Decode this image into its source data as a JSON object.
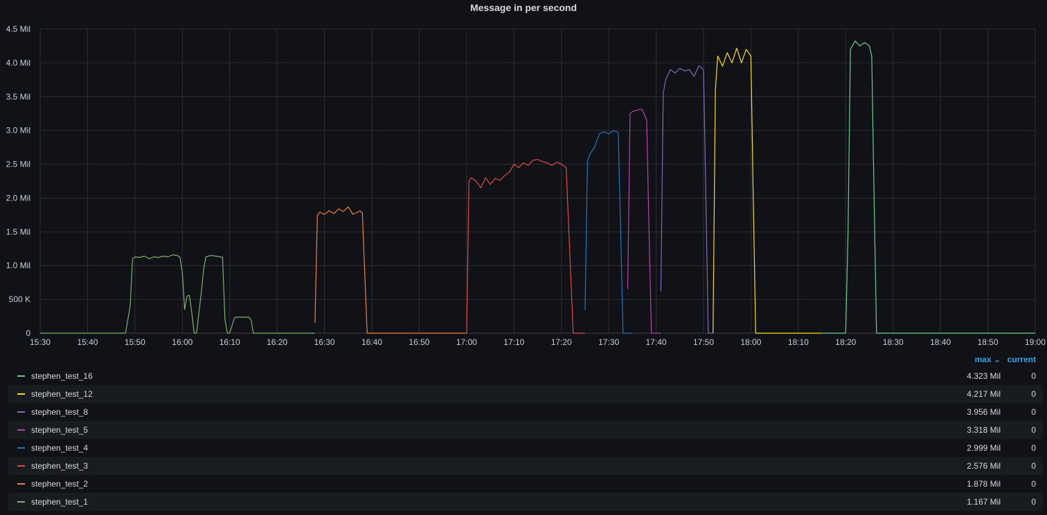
{
  "panel": {
    "title": "Message in per second"
  },
  "legend": {
    "col_max": "max ⌄",
    "col_current": "current",
    "rows": [
      {
        "name": "stephen_test_16",
        "color": "#6ccf8e",
        "max": "4.323 Mil",
        "current": "0"
      },
      {
        "name": "stephen_test_12",
        "color": "#fade2a",
        "max": "4.217 Mil",
        "current": "0"
      },
      {
        "name": "stephen_test_8",
        "color": "#806eb7",
        "max": "3.956 Mil",
        "current": "0"
      },
      {
        "name": "stephen_test_5",
        "color": "#ba43a9",
        "max": "3.318 Mil",
        "current": "0"
      },
      {
        "name": "stephen_test_4",
        "color": "#1f78c1",
        "max": "2.999 Mil",
        "current": "0"
      },
      {
        "name": "stephen_test_3",
        "color": "#e24d42",
        "max": "2.576 Mil",
        "current": "0"
      },
      {
        "name": "stephen_test_2",
        "color": "#ef843c",
        "max": "1.878 Mil",
        "current": "0"
      },
      {
        "name": "stephen_test_1",
        "color": "#7eb26d",
        "max": "1.167 Mil",
        "current": "0"
      }
    ]
  },
  "chart_data": {
    "type": "line",
    "title": "Message in per second",
    "xlabel": "",
    "ylabel": "",
    "grid": true,
    "legend_position": "bottom",
    "x_range": [
      "15:30",
      "19:00"
    ],
    "ylim": [
      0,
      4500000
    ],
    "x_ticks": [
      "15:30",
      "15:40",
      "15:50",
      "16:00",
      "16:10",
      "16:20",
      "16:30",
      "16:40",
      "16:50",
      "17:00",
      "17:10",
      "17:20",
      "17:30",
      "17:40",
      "17:50",
      "18:00",
      "18:10",
      "18:20",
      "18:30",
      "18:40",
      "18:50",
      "19:00"
    ],
    "y_ticks": [
      {
        "v": 0,
        "label": "0"
      },
      {
        "v": 500000,
        "label": "500 K"
      },
      {
        "v": 1000000,
        "label": "1.0 Mil"
      },
      {
        "v": 1500000,
        "label": "1.5 Mil"
      },
      {
        "v": 2000000,
        "label": "2.0 Mil"
      },
      {
        "v": 2500000,
        "label": "2.5 Mil"
      },
      {
        "v": 3000000,
        "label": "3.0 Mil"
      },
      {
        "v": 3500000,
        "label": "3.5 Mil"
      },
      {
        "v": 4000000,
        "label": "4.0 Mil"
      },
      {
        "v": 4500000,
        "label": "4.5 Mil"
      }
    ],
    "series": [
      {
        "name": "stephen_test_1",
        "color": "#7eb26d",
        "points": [
          [
            "15:30",
            0
          ],
          [
            "15:48",
            0
          ],
          [
            "15:49",
            400000
          ],
          [
            "15:49.5",
            1100000
          ],
          [
            "15:50",
            1130000
          ],
          [
            "15:51",
            1120000
          ],
          [
            "15:52",
            1140000
          ],
          [
            "15:53",
            1100000
          ],
          [
            "15:54",
            1130000
          ],
          [
            "15:55",
            1120000
          ],
          [
            "15:56",
            1140000
          ],
          [
            "15:57",
            1130000
          ],
          [
            "15:58",
            1160000
          ],
          [
            "15:59",
            1150000
          ],
          [
            "15:59.5",
            1120000
          ],
          [
            "16:00",
            900000
          ],
          [
            "16:00.5",
            350000
          ],
          [
            "16:01",
            550000
          ],
          [
            "16:01.5",
            560000
          ],
          [
            "16:02",
            300000
          ],
          [
            "16:02.5",
            0
          ],
          [
            "16:03",
            0
          ],
          [
            "16:03.5",
            300000
          ],
          [
            "16:04",
            600000
          ],
          [
            "16:04.5",
            950000
          ],
          [
            "16:05",
            1130000
          ],
          [
            "16:06",
            1150000
          ],
          [
            "16:07",
            1140000
          ],
          [
            "16:08",
            1130000
          ],
          [
            "16:08.5",
            1120000
          ],
          [
            "16:09",
            200000
          ],
          [
            "16:09.5",
            0
          ],
          [
            "16:10",
            0
          ],
          [
            "16:11",
            230000
          ],
          [
            "16:12",
            240000
          ],
          [
            "16:13",
            235000
          ],
          [
            "16:14",
            240000
          ],
          [
            "16:14.5",
            200000
          ],
          [
            "16:15",
            0
          ],
          [
            "16:28",
            0
          ]
        ]
      },
      {
        "name": "stephen_test_2",
        "color": "#ef843c",
        "points": [
          [
            "16:28",
            150000
          ],
          [
            "16:28.5",
            1750000
          ],
          [
            "16:29",
            1790000
          ],
          [
            "16:30",
            1760000
          ],
          [
            "16:31",
            1810000
          ],
          [
            "16:32",
            1770000
          ],
          [
            "16:33",
            1840000
          ],
          [
            "16:34",
            1800000
          ],
          [
            "16:35",
            1870000
          ],
          [
            "16:36",
            1760000
          ],
          [
            "16:37",
            1790000
          ],
          [
            "16:37.5",
            1810000
          ],
          [
            "16:38",
            1780000
          ],
          [
            "16:39",
            0
          ],
          [
            "17:00",
            0
          ]
        ]
      },
      {
        "name": "stephen_test_3",
        "color": "#e24d42",
        "points": [
          [
            "17:00",
            0
          ],
          [
            "17:00.5",
            2250000
          ],
          [
            "17:01",
            2300000
          ],
          [
            "17:02",
            2250000
          ],
          [
            "17:03",
            2150000
          ],
          [
            "17:04",
            2300000
          ],
          [
            "17:05",
            2200000
          ],
          [
            "17:06",
            2290000
          ],
          [
            "17:07",
            2260000
          ],
          [
            "17:08",
            2330000
          ],
          [
            "17:09",
            2380000
          ],
          [
            "17:10",
            2500000
          ],
          [
            "17:11",
            2450000
          ],
          [
            "17:12",
            2520000
          ],
          [
            "17:13",
            2480000
          ],
          [
            "17:14",
            2560000
          ],
          [
            "17:15",
            2570000
          ],
          [
            "17:16",
            2540000
          ],
          [
            "17:17",
            2520000
          ],
          [
            "17:18",
            2480000
          ],
          [
            "17:19",
            2530000
          ],
          [
            "17:20",
            2500000
          ],
          [
            "17:21",
            2450000
          ],
          [
            "17:22.5",
            0
          ],
          [
            "17:25",
            0
          ]
        ]
      },
      {
        "name": "stephen_test_4",
        "color": "#1f78c1",
        "points": [
          [
            "17:25",
            340000
          ],
          [
            "17:25.5",
            2550000
          ],
          [
            "17:26",
            2650000
          ],
          [
            "17:27",
            2750000
          ],
          [
            "17:28",
            2950000
          ],
          [
            "17:29",
            2980000
          ],
          [
            "17:30",
            2950000
          ],
          [
            "17:31",
            2999000
          ],
          [
            "17:32",
            2970000
          ],
          [
            "17:32.5",
            1500000
          ],
          [
            "17:33",
            0
          ],
          [
            "17:35",
            0
          ]
        ]
      },
      {
        "name": "stephen_test_5",
        "color": "#ba43a9",
        "points": [
          [
            "17:34",
            650000
          ],
          [
            "17:34.5",
            3250000
          ],
          [
            "17:35",
            3280000
          ],
          [
            "17:36",
            3300000
          ],
          [
            "17:37",
            3318000
          ],
          [
            "17:38",
            3150000
          ],
          [
            "17:38.5",
            1500000
          ],
          [
            "17:39",
            0
          ],
          [
            "17:41",
            0
          ]
        ]
      },
      {
        "name": "stephen_test_8",
        "color": "#806eb7",
        "points": [
          [
            "17:41",
            620000
          ],
          [
            "17:41.5",
            3550000
          ],
          [
            "17:42",
            3750000
          ],
          [
            "17:43",
            3900000
          ],
          [
            "17:44",
            3850000
          ],
          [
            "17:45",
            3920000
          ],
          [
            "17:46",
            3880000
          ],
          [
            "17:47",
            3900000
          ],
          [
            "17:48",
            3800000
          ],
          [
            "17:49",
            3956000
          ],
          [
            "17:50",
            3900000
          ],
          [
            "17:50.5",
            2000000
          ],
          [
            "17:51",
            0
          ],
          [
            "17:52",
            0
          ]
        ]
      },
      {
        "name": "stephen_test_12",
        "color": "#fade2a",
        "points": [
          [
            "17:52",
            0
          ],
          [
            "17:52.5",
            3600000
          ],
          [
            "17:53",
            4100000
          ],
          [
            "17:54",
            3950000
          ],
          [
            "17:55",
            4150000
          ],
          [
            "17:56",
            4000000
          ],
          [
            "17:57",
            4217000
          ],
          [
            "17:58",
            4000000
          ],
          [
            "17:59",
            4200000
          ],
          [
            "18:00",
            4100000
          ],
          [
            "18:00.5",
            2000000
          ],
          [
            "18:01",
            0
          ],
          [
            "18:15",
            0
          ]
        ]
      },
      {
        "name": "stephen_test_16",
        "color": "#6ccf8e",
        "points": [
          [
            "18:15",
            0
          ],
          [
            "18:20",
            0
          ],
          [
            "18:20.5",
            1500000
          ],
          [
            "18:21",
            4200000
          ],
          [
            "18:22",
            4323000
          ],
          [
            "18:23",
            4250000
          ],
          [
            "18:24",
            4300000
          ],
          [
            "18:25",
            4250000
          ],
          [
            "18:25.5",
            4100000
          ],
          [
            "18:26",
            2000000
          ],
          [
            "18:26.5",
            0
          ],
          [
            "19:00",
            0
          ]
        ]
      }
    ]
  }
}
